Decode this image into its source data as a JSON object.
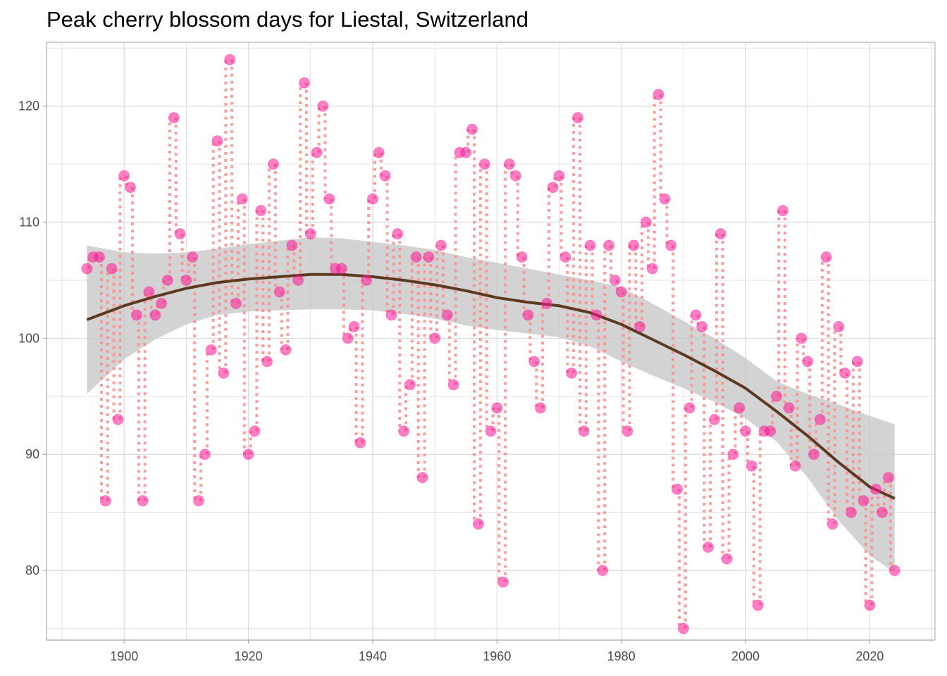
{
  "chart_data": {
    "type": "scatter",
    "title": "Peak cherry blossom days for Liestal, Switzerland",
    "xlabel": "",
    "ylabel": "",
    "xlim": [
      1887.5,
      2030.5
    ],
    "ylim": [
      74,
      125.5
    ],
    "x_ticks": [
      1900,
      1920,
      1940,
      1960,
      1980,
      2000,
      2020
    ],
    "y_ticks": [
      80,
      90,
      100,
      110,
      120
    ],
    "grid": true,
    "legend": "none",
    "colors": {
      "points": "#ff1493",
      "segments": "#ff8c8c",
      "smooth_line": "#5c3a21",
      "confidence_band": "#c8c8c8",
      "grid": "#dcdcdc",
      "axis": "#a8a8a8"
    },
    "series": [
      {
        "type": "points",
        "x": [
          1894,
          1895,
          1896,
          1897,
          1898,
          1899,
          1900,
          1901,
          1902,
          1903,
          1904,
          1905,
          1906,
          1907,
          1908,
          1909,
          1910,
          1911,
          1912,
          1913,
          1914,
          1915,
          1916,
          1917,
          1918,
          1919,
          1920,
          1921,
          1922,
          1923,
          1924,
          1925,
          1926,
          1927,
          1928,
          1929,
          1930,
          1931,
          1932,
          1933,
          1934,
          1935,
          1936,
          1937,
          1938,
          1939,
          1940,
          1941,
          1942,
          1943,
          1944,
          1945,
          1946,
          1947,
          1948,
          1949,
          1950,
          1951,
          1952,
          1953,
          1954,
          1955,
          1956,
          1957,
          1958,
          1959,
          1960,
          1961,
          1962,
          1963,
          1964,
          1965,
          1966,
          1967,
          1968,
          1969,
          1970,
          1971,
          1972,
          1973,
          1974,
          1975,
          1976,
          1977,
          1978,
          1979,
          1980,
          1981,
          1982,
          1983,
          1984,
          1985,
          1986,
          1987,
          1988,
          1989,
          1990,
          1991,
          1992,
          1993,
          1994,
          1995,
          1996,
          1997,
          1998,
          1999,
          2000,
          2001,
          2002,
          2003,
          2004,
          2005,
          2006,
          2007,
          2008,
          2009,
          2010,
          2011,
          2012,
          2013,
          2014,
          2015,
          2016,
          2017,
          2018,
          2019,
          2020,
          2021,
          2022,
          2023,
          2024
        ],
        "y": [
          106,
          107,
          107,
          86,
          106,
          93,
          114,
          113,
          102,
          86,
          104,
          102,
          103,
          105,
          119,
          109,
          105,
          107,
          86,
          90,
          99,
          117,
          97,
          124,
          103,
          112,
          90,
          92,
          111,
          98,
          115,
          104,
          99,
          108,
          105,
          122,
          109,
          116,
          120,
          112,
          106,
          106,
          100,
          101,
          91,
          105,
          112,
          116,
          114,
          102,
          109,
          92,
          96,
          107,
          88,
          107,
          100,
          108,
          102,
          96,
          116,
          116,
          118,
          84,
          115,
          92,
          94,
          79,
          115,
          114,
          107,
          102,
          98,
          94,
          103,
          113,
          114,
          107,
          97,
          119,
          92,
          108,
          102,
          80,
          108,
          105,
          104,
          92,
          108,
          101,
          110,
          106,
          121,
          112,
          108,
          87,
          75,
          94,
          102,
          101,
          82,
          93,
          109,
          81,
          90,
          94,
          92,
          89,
          77,
          92,
          92,
          95,
          111,
          94,
          89,
          100,
          98,
          90,
          93,
          107,
          84,
          101,
          97,
          85,
          98,
          86,
          77,
          87,
          85,
          88,
          80
        ]
      },
      {
        "type": "smooth",
        "x": [
          1894,
          1900,
          1905,
          1910,
          1915,
          1920,
          1925,
          1930,
          1935,
          1940,
          1945,
          1950,
          1955,
          1960,
          1965,
          1970,
          1975,
          1980,
          1985,
          1990,
          1995,
          2000,
          2005,
          2010,
          2015,
          2020,
          2024
        ],
        "y": [
          101.6,
          102.8,
          103.6,
          104.3,
          104.8,
          105.1,
          105.3,
          105.5,
          105.5,
          105.3,
          105.0,
          104.6,
          104.1,
          103.5,
          103.1,
          102.8,
          102.2,
          101.2,
          99.9,
          98.6,
          97.2,
          95.7,
          93.7,
          91.6,
          89.3,
          87.2,
          86.2
        ],
        "band_upper": [
          108.0,
          107.4,
          107.3,
          107.4,
          107.7,
          108.1,
          108.4,
          108.7,
          108.6,
          108.3,
          108.0,
          107.6,
          107.0,
          106.5,
          106.0,
          105.5,
          105.0,
          104.4,
          103.0,
          101.5,
          100.0,
          98.3,
          96.3,
          95.2,
          94.3,
          93.3,
          92.6
        ],
        "band_lower": [
          95.2,
          98.2,
          99.9,
          101.2,
          102.0,
          102.3,
          102.4,
          102.5,
          102.5,
          102.4,
          102.1,
          101.7,
          101.1,
          100.7,
          100.4,
          100.1,
          99.3,
          98.0,
          96.8,
          95.7,
          94.5,
          93.1,
          91.1,
          88.0,
          84.3,
          81.3,
          79.8
        ]
      }
    ]
  }
}
